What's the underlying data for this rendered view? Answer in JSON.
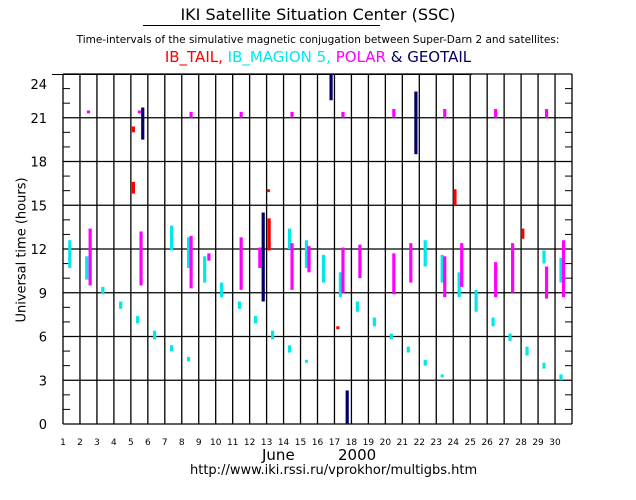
{
  "header": {
    "title": "IKI Satellite Situation Center (SSC)",
    "subtitle": "Time-intervals of the simulative magnetic conjugation between Super-Darn 2 and satellites:",
    "url": "http://www.iki.rssi.ru/vprokhor/multigbs.htm"
  },
  "chart_data": {
    "type": "timeline",
    "title": "IKI Satellite Situation Center (SSC)",
    "xlabel_month": "June",
    "xlabel_year": "2000",
    "ylabel": "Universal time (hours)",
    "xlim": [
      1,
      31
    ],
    "ylim": [
      0,
      24
    ],
    "xticks": [
      1,
      2,
      3,
      4,
      5,
      6,
      7,
      8,
      9,
      10,
      11,
      12,
      13,
      14,
      15,
      16,
      17,
      18,
      19,
      20,
      21,
      22,
      23,
      24,
      25,
      26,
      27,
      28,
      29,
      30
    ],
    "yticks": [
      0,
      3,
      6,
      9,
      12,
      15,
      18,
      21,
      24
    ],
    "grid": true,
    "legend": [
      {
        "name": "IB_TAIL",
        "text": "IB_TAIL,",
        "color": "#ff0000"
      },
      {
        "name": "IB_MAGION 5",
        "text": " IB_MAGION 5,",
        "color": "#00e8e8"
      },
      {
        "name": "POLAR",
        "text": " POLAR",
        "color": "#ff00ff"
      },
      {
        "name": "GEOTAIL",
        "text": " & GEOTAIL",
        "color": "#000066"
      }
    ],
    "series": [
      {
        "name": "IB_TAIL",
        "color": "#ff0000",
        "intervals": [
          [
            5.15,
            20.0,
            20.4
          ],
          [
            5.15,
            15.8,
            16.6
          ],
          [
            13.1,
            15.9,
            16.1
          ],
          [
            13.15,
            11.9,
            14.1
          ],
          [
            17.2,
            6.5,
            6.7
          ],
          [
            24.1,
            15.0,
            16.1
          ],
          [
            28.1,
            12.7,
            13.4
          ]
        ]
      },
      {
        "name": "IB_MAGION 5",
        "color": "#00e8e8",
        "intervals": [
          [
            1.4,
            10.7,
            12.6
          ],
          [
            2.4,
            9.9,
            11.5
          ],
          [
            3.35,
            8.9,
            9.4
          ],
          [
            4.4,
            7.9,
            8.4
          ],
          [
            5.4,
            6.9,
            7.4
          ],
          [
            6.4,
            5.8,
            6.4
          ],
          [
            7.4,
            11.9,
            13.6
          ],
          [
            7.4,
            5.0,
            5.4
          ],
          [
            8.4,
            10.7,
            12.8
          ],
          [
            8.4,
            4.3,
            4.6
          ],
          [
            9.35,
            9.7,
            11.5
          ],
          [
            10.35,
            8.7,
            9.7
          ],
          [
            11.4,
            7.9,
            8.4
          ],
          [
            12.35,
            6.9,
            7.4
          ],
          [
            13.35,
            5.8,
            6.4
          ],
          [
            14.35,
            12.0,
            13.4
          ],
          [
            14.35,
            4.9,
            5.4
          ],
          [
            15.35,
            10.7,
            12.6
          ],
          [
            15.35,
            4.2,
            4.4
          ],
          [
            16.35,
            9.7,
            11.6
          ],
          [
            17.35,
            8.7,
            10.4
          ],
          [
            18.35,
            7.7,
            8.4
          ],
          [
            19.35,
            6.7,
            7.3
          ],
          [
            20.35,
            5.8,
            6.2
          ],
          [
            21.35,
            4.9,
            5.3
          ],
          [
            22.35,
            10.8,
            12.6
          ],
          [
            22.35,
            4.0,
            4.4
          ],
          [
            23.35,
            9.7,
            11.6
          ],
          [
            23.35,
            3.2,
            3.4
          ],
          [
            24.35,
            8.7,
            10.4
          ],
          [
            25.35,
            7.7,
            9.2
          ],
          [
            26.35,
            6.7,
            7.3
          ],
          [
            27.35,
            5.7,
            6.2
          ],
          [
            28.35,
            4.7,
            5.3
          ],
          [
            29.35,
            11.0,
            11.9
          ],
          [
            29.35,
            3.8,
            4.2
          ],
          [
            30.35,
            9.7,
            11.4
          ],
          [
            30.35,
            3.0,
            3.4
          ]
        ]
      },
      {
        "name": "POLAR",
        "color": "#ff00ff",
        "intervals": [
          [
            2.5,
            21.3,
            21.5
          ],
          [
            5.5,
            21.3,
            21.5
          ],
          [
            8.55,
            21.0,
            21.4
          ],
          [
            11.5,
            21.0,
            21.4
          ],
          [
            14.5,
            21.0,
            21.4
          ],
          [
            17.5,
            21.0,
            21.4
          ],
          [
            20.5,
            21.0,
            21.6
          ],
          [
            23.5,
            21.0,
            21.6
          ],
          [
            26.5,
            21.0,
            21.6
          ],
          [
            29.5,
            21.0,
            21.6
          ],
          [
            2.6,
            9.5,
            13.4
          ],
          [
            5.6,
            9.5,
            13.2
          ],
          [
            8.55,
            9.3,
            12.9
          ],
          [
            9.6,
            11.2,
            11.7
          ],
          [
            11.5,
            9.2,
            12.8
          ],
          [
            12.6,
            10.7,
            12.1
          ],
          [
            14.5,
            9.2,
            12.4
          ],
          [
            15.5,
            10.4,
            12.2
          ],
          [
            17.5,
            9.0,
            12.1
          ],
          [
            18.5,
            10.0,
            12.3
          ],
          [
            20.5,
            8.9,
            11.7
          ],
          [
            21.5,
            9.7,
            12.4
          ],
          [
            23.5,
            8.7,
            11.5
          ],
          [
            24.5,
            9.4,
            12.4
          ],
          [
            26.5,
            8.7,
            11.1
          ],
          [
            27.5,
            9.0,
            12.4
          ],
          [
            29.5,
            8.6,
            10.8
          ],
          [
            30.5,
            8.7,
            12.6
          ]
        ]
      },
      {
        "name": "GEOTAIL",
        "color": "#000066",
        "intervals": [
          [
            5.7,
            19.5,
            21.7
          ],
          [
            12.8,
            8.4,
            14.5
          ],
          [
            16.8,
            22.2,
            24.0
          ],
          [
            17.75,
            0.0,
            2.3
          ],
          [
            21.8,
            18.5,
            22.8
          ]
        ]
      }
    ]
  }
}
